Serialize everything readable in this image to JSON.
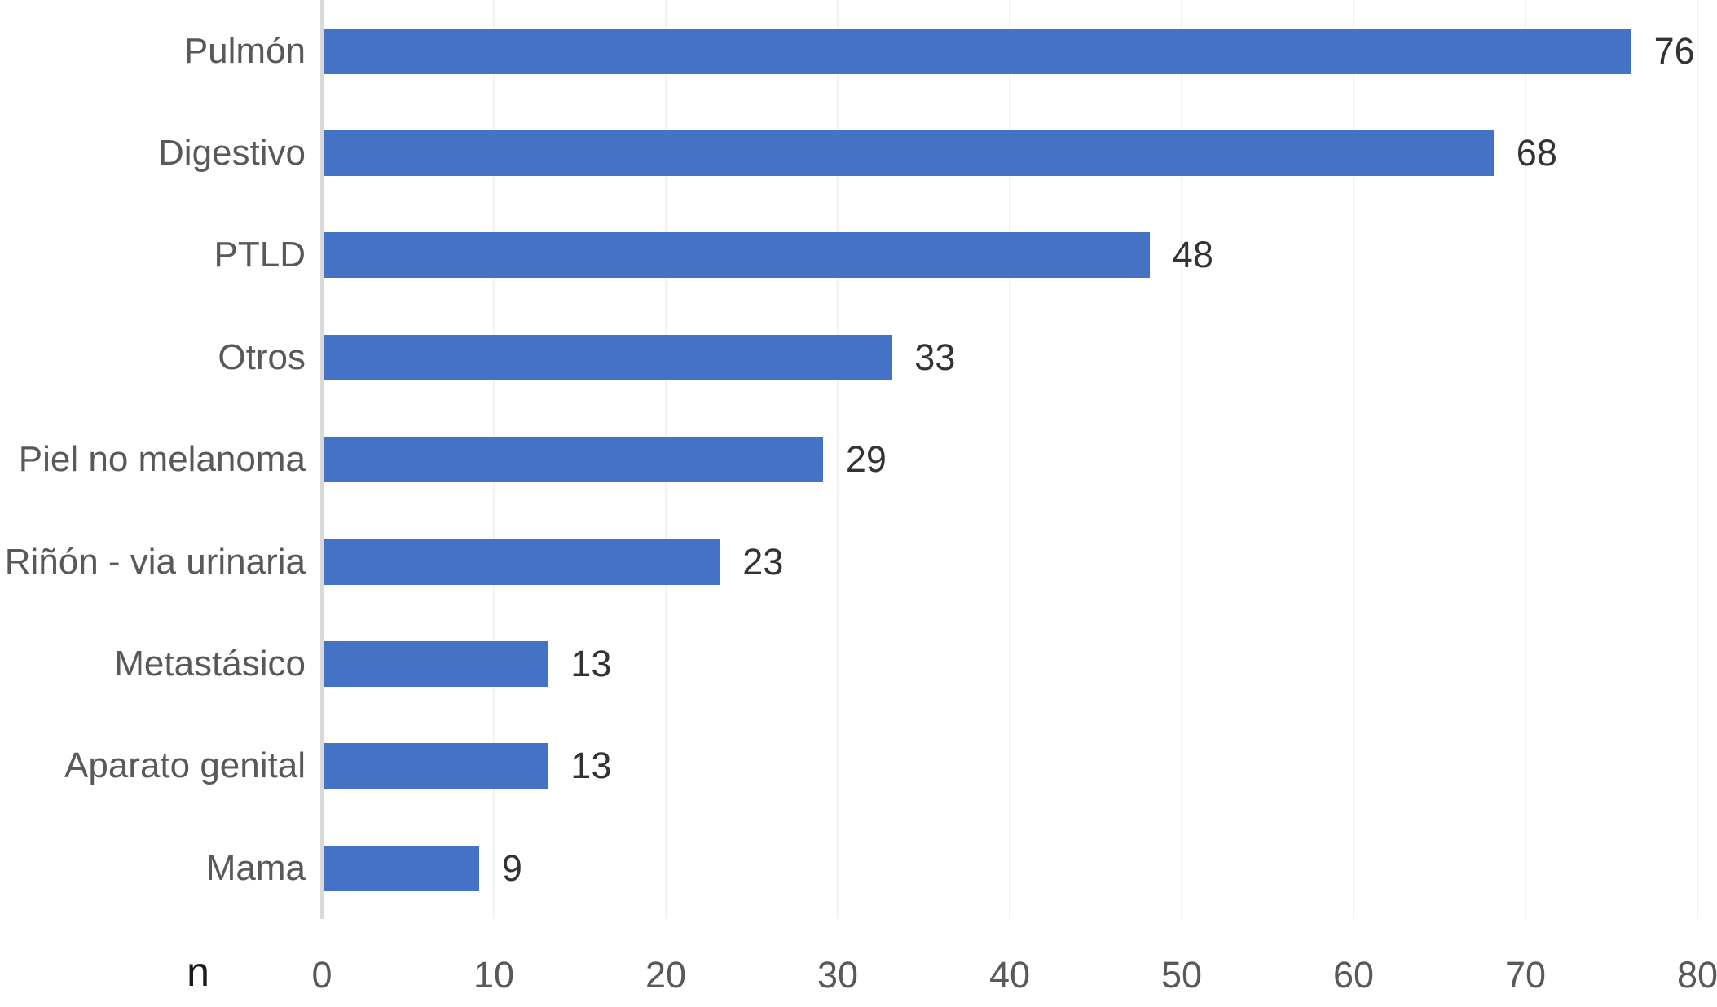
{
  "chart_data": {
    "type": "bar",
    "orientation": "horizontal",
    "title": "",
    "categories": [
      "Pulmón",
      "Digestivo",
      "PTLD",
      "Otros",
      "Piel no melanoma",
      "Riñón - via urinaria",
      "Metastásico",
      "Aparato genital",
      "Mama"
    ],
    "values": [
      76,
      68,
      48,
      33,
      29,
      23,
      13,
      13,
      9
    ],
    "value_labels": [
      "76",
      "68",
      "48",
      "33",
      "29",
      "23",
      "13",
      "13",
      "9"
    ],
    "xlabel": "n",
    "ylabel": "",
    "xlim": [
      0,
      80
    ],
    "x_ticks": [
      0,
      10,
      20,
      30,
      40,
      50,
      60,
      70,
      80
    ],
    "x_tick_labels": [
      "0",
      "10",
      "20",
      "30",
      "40",
      "50",
      "60",
      "70",
      "80"
    ],
    "grid": "faint vertical gridlines at each x tick",
    "legend": "none",
    "data_labels_position": "outside-end",
    "colors": {
      "bar": "#4472C4",
      "axis_line": "#D9D9D9",
      "gridline": "#F2F2F2",
      "category_label": "#595959",
      "tick_label": "#595959",
      "value_label": "#333333",
      "axis_title": "#1A1A1A",
      "background": "#FFFFFF"
    }
  }
}
